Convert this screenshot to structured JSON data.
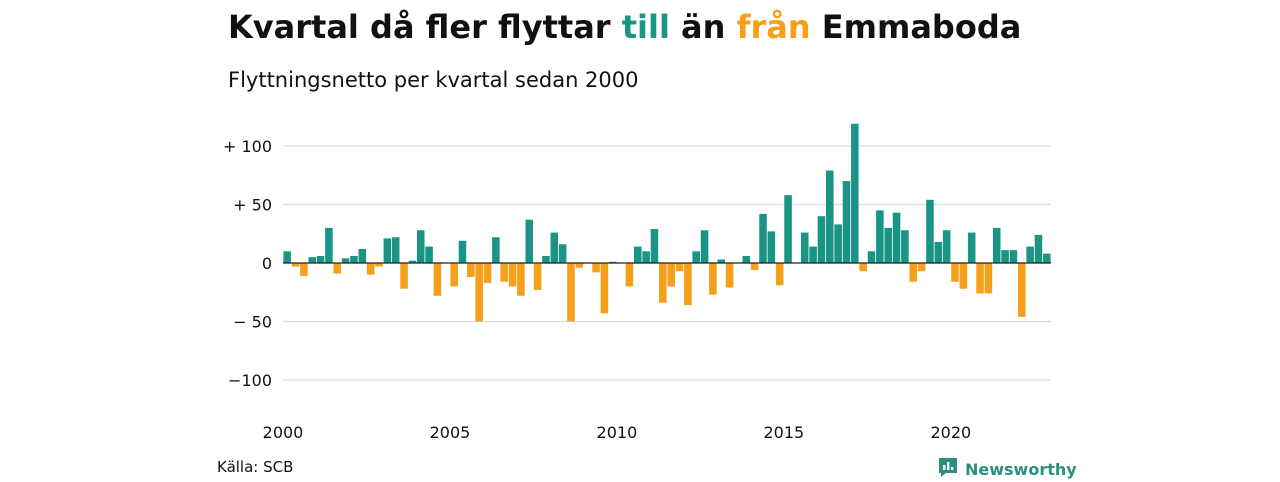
{
  "header": {
    "title_parts": [
      "Kvartal då fler flyttar ",
      "till",
      " än ",
      "från",
      " Emmaboda"
    ],
    "subtitle": "Flyttningsnetto per kvartal sedan 2000"
  },
  "footer": {
    "source": "Källa: SCB",
    "brand": "Newsworthy",
    "brand_icon": "newsworthy-logo-icon"
  },
  "colors": {
    "positive": "#1a9485",
    "negative": "#f59f1a",
    "grid": "#dddddd",
    "zero_line": "#222222",
    "brand": "#2a8f80"
  },
  "chart_data": {
    "type": "bar",
    "title": "Kvartal då fler flyttar till än från Emmaboda",
    "subtitle": "Flyttningsnetto per kvartal sedan 2000",
    "ylim": [
      -120,
      125
    ],
    "yticks": [
      100,
      50,
      0,
      -50,
      -100
    ],
    "ytick_labels": [
      "+ 100",
      "+  50",
      "0",
      "− 50",
      "−100"
    ],
    "xtick_labels": [
      "2000",
      "2005",
      "2010",
      "2015",
      "2020"
    ],
    "grid": true,
    "first_quarter": "2000 Q1",
    "values": [
      10,
      -3,
      -11,
      5,
      6,
      30,
      -9,
      4,
      6,
      12,
      -10,
      -3,
      21,
      22,
      -22,
      2,
      28,
      14,
      -28,
      0,
      -20,
      19,
      -12,
      -50,
      -17,
      22,
      -16,
      -20,
      -28,
      37,
      -23,
      6,
      26,
      16,
      -50,
      -4,
      0,
      -8,
      -43,
      1,
      0,
      -20,
      14,
      10,
      29,
      -34,
      -20,
      -7,
      -36,
      10,
      28,
      -27,
      3,
      -21,
      0,
      6,
      -6,
      42,
      27,
      -19,
      58,
      0,
      26,
      14,
      40,
      79,
      33,
      70,
      119,
      -7,
      10,
      45,
      30,
      43,
      28,
      -16,
      -7,
      54,
      18,
      28,
      -16,
      -22,
      26,
      -26,
      -26,
      30,
      11,
      11,
      -46,
      14,
      24,
      8
    ]
  }
}
